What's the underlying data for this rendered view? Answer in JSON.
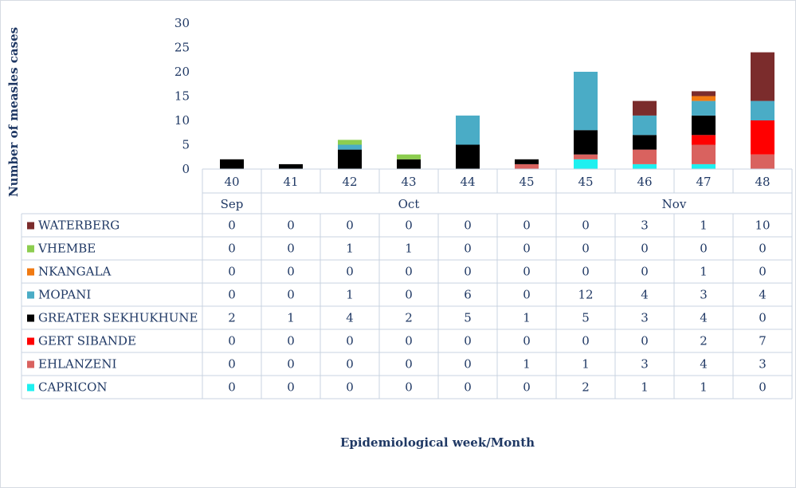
{
  "chart_data": {
    "type": "bar",
    "stacked": true,
    "ylabel": "Number of measles cases",
    "xlabel": "Epidemiological week/Month",
    "ylim": [
      0,
      30
    ],
    "yticks": [
      0,
      5,
      10,
      15,
      20,
      25,
      30
    ],
    "categories": [
      "40",
      "41",
      "42",
      "43",
      "44",
      "45",
      "45",
      "46",
      "47",
      "48"
    ],
    "months": [
      {
        "label": "Sep",
        "span": 1
      },
      {
        "label": "Oct",
        "span": 5
      },
      {
        "label": "Nov",
        "span": 4
      }
    ],
    "series": [
      {
        "name": "WATERBERG",
        "color": "#7b2c2c",
        "values": [
          0,
          0,
          0,
          0,
          0,
          0,
          0,
          3,
          1,
          10
        ]
      },
      {
        "name": "VHEMBE",
        "color": "#8ccd4f",
        "values": [
          0,
          0,
          1,
          1,
          0,
          0,
          0,
          0,
          0,
          0
        ]
      },
      {
        "name": "NKANGALA",
        "color": "#f07a12",
        "values": [
          0,
          0,
          0,
          0,
          0,
          0,
          0,
          0,
          1,
          0
        ]
      },
      {
        "name": "MOPANI",
        "color": "#4aacc6",
        "values": [
          0,
          0,
          1,
          0,
          6,
          0,
          12,
          4,
          3,
          4
        ]
      },
      {
        "name": "GREATER SEKHUKHUNE",
        "color": "#000000",
        "values": [
          2,
          1,
          4,
          2,
          5,
          1,
          5,
          3,
          4,
          0
        ]
      },
      {
        "name": "GERT SIBANDE",
        "color": "#ff0000",
        "values": [
          0,
          0,
          0,
          0,
          0,
          0,
          0,
          0,
          2,
          7
        ]
      },
      {
        "name": "EHLANZENI",
        "color": "#d9625f",
        "values": [
          0,
          0,
          0,
          0,
          0,
          1,
          1,
          3,
          4,
          3
        ]
      },
      {
        "name": "CAPRICON",
        "color": "#1ef0f0",
        "values": [
          0,
          0,
          0,
          0,
          0,
          0,
          2,
          1,
          1,
          0
        ]
      }
    ],
    "legend": "table-left",
    "grid": false
  }
}
